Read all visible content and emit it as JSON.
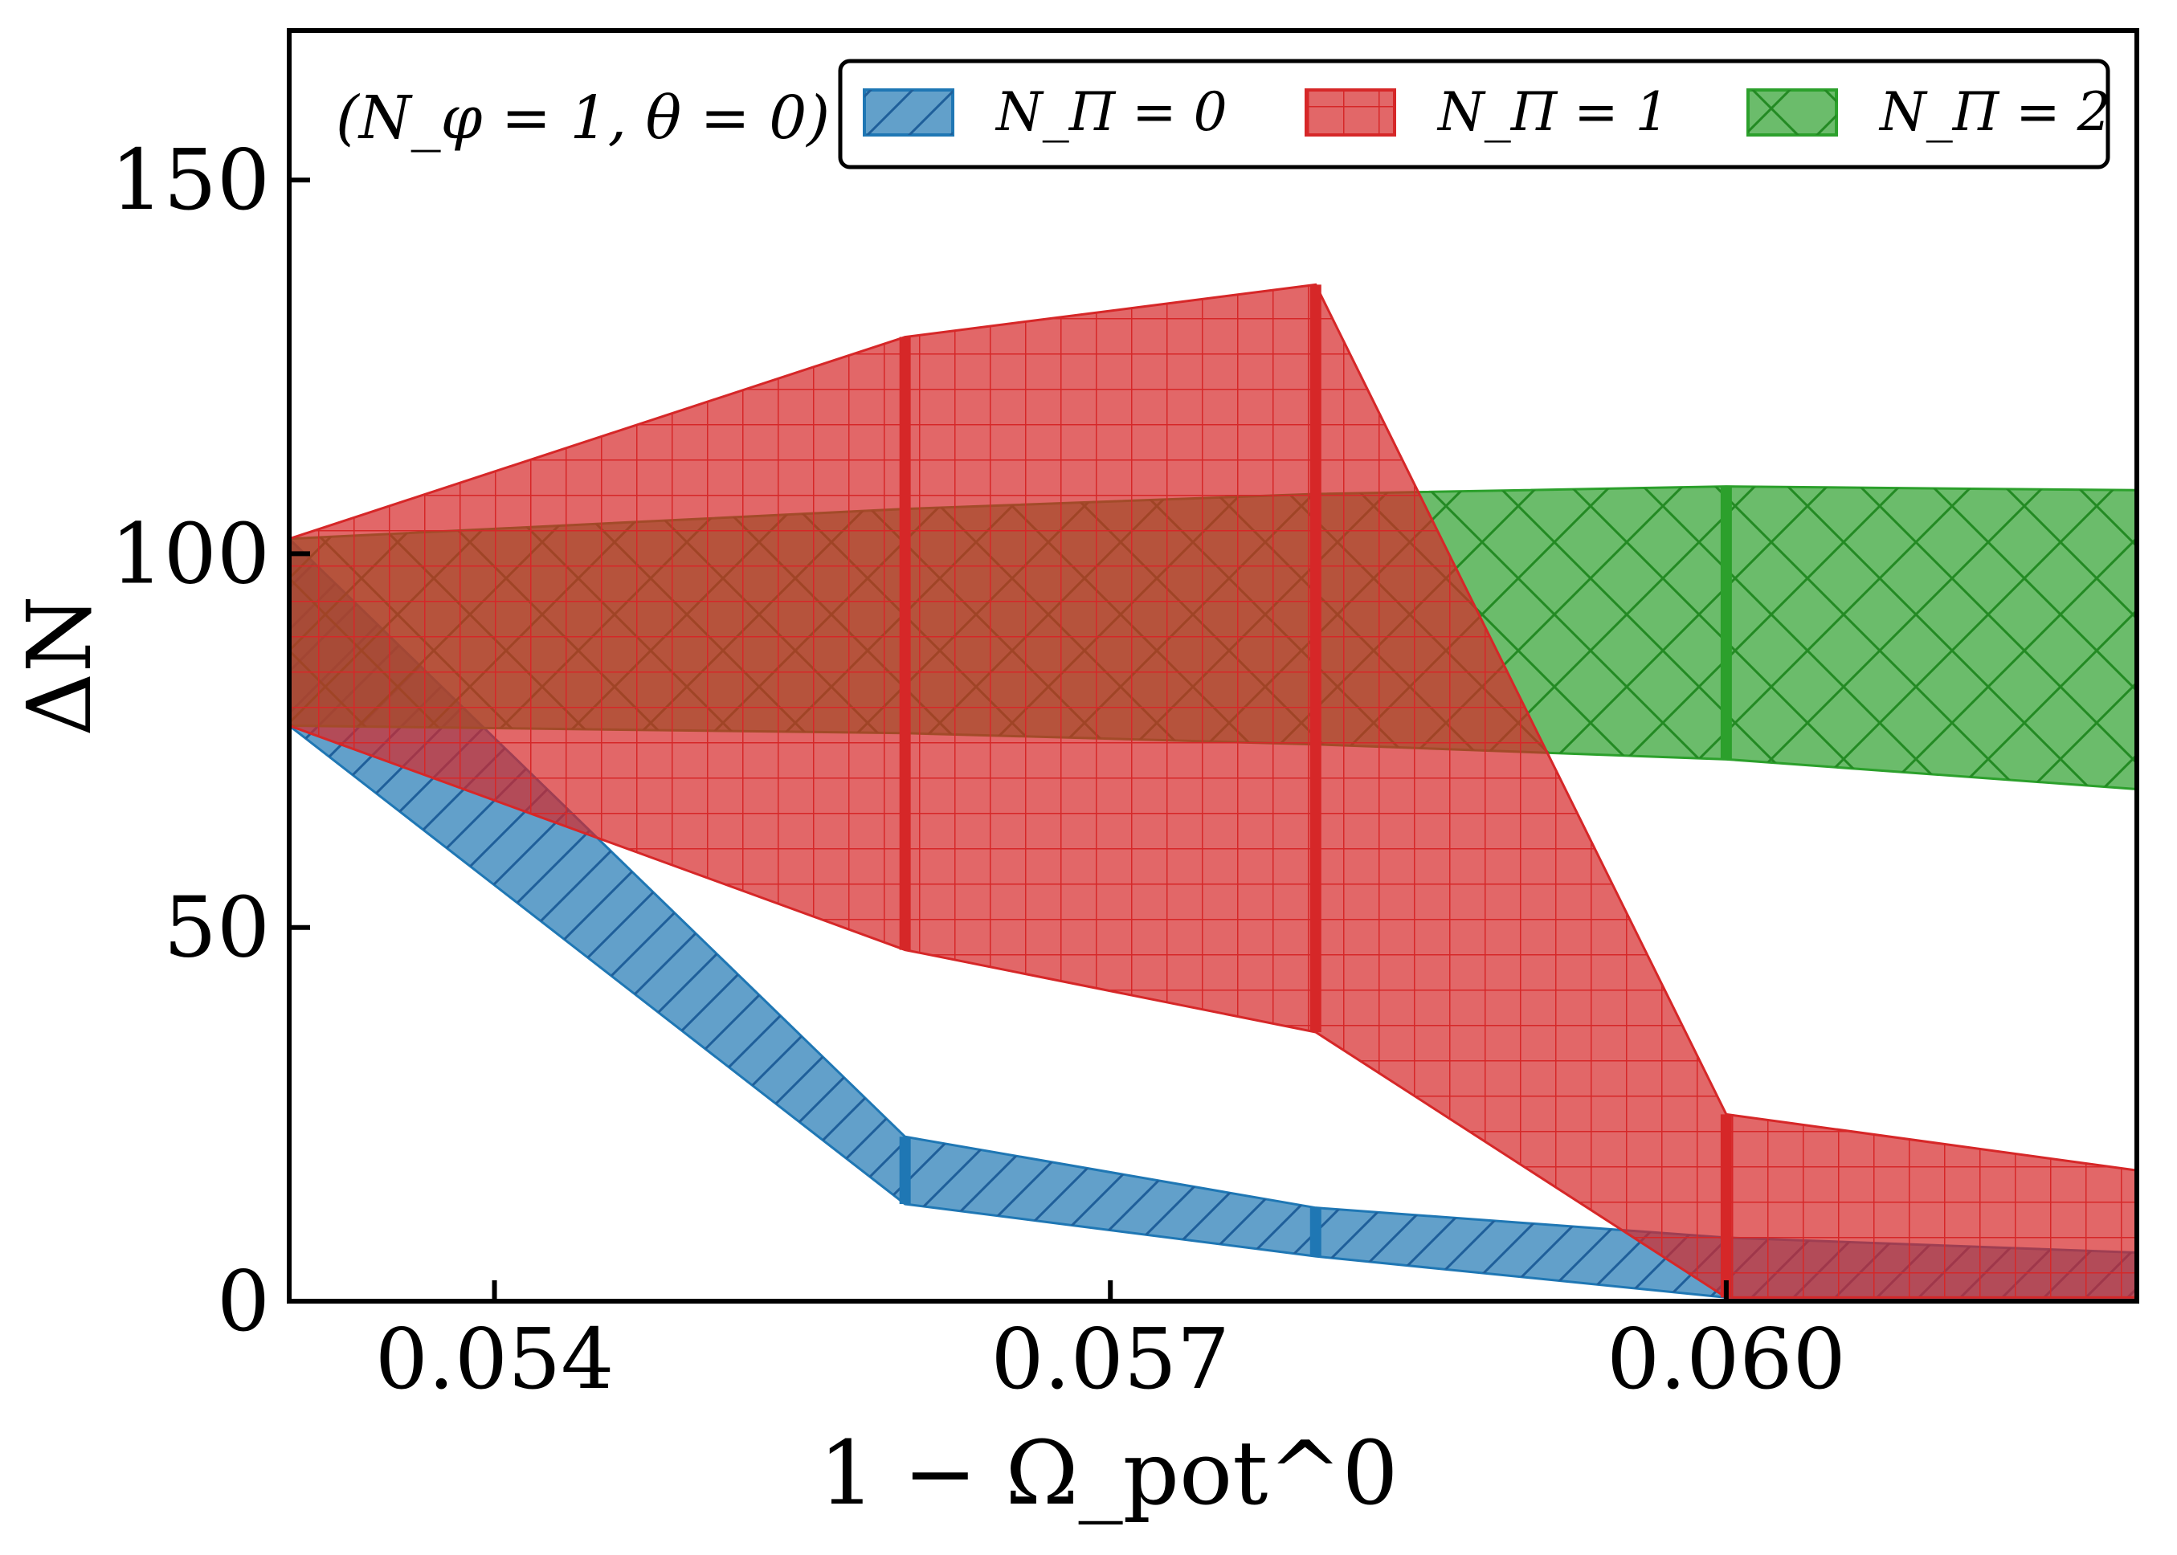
{
  "chart_data": {
    "type": "area",
    "title": "",
    "annotation": "(N_φ = 1, θ = 0)",
    "xlabel": "1 − Ω_pot^0",
    "ylabel": "ΔN",
    "xlim": [
      0.053,
      0.062
    ],
    "ylim": [
      0,
      170
    ],
    "x_ticks": [
      0.054,
      0.057,
      0.06
    ],
    "x_tick_labels": [
      "0.054",
      "0.057",
      "0.060"
    ],
    "y_ticks": [
      0,
      50,
      100,
      150
    ],
    "y_tick_labels": [
      "0",
      "50",
      "100",
      "150"
    ],
    "legend_position": "top-right",
    "series": [
      {
        "name": "N_Π = 0",
        "color": "#1f77b4",
        "hatch": "diagonal",
        "x": [
          0.053,
          0.056,
          0.058,
          0.06,
          0.062
        ],
        "upper": [
          102,
          22,
          12.5,
          8.5,
          6.5
        ],
        "lower": [
          77,
          13,
          6,
          0.5,
          0.5
        ],
        "error_bars_at": [
          0.056,
          0.058,
          0.06
        ]
      },
      {
        "name": "N_Π = 1",
        "color": "#d62728",
        "hatch": "grid",
        "x": [
          0.053,
          0.056,
          0.058,
          0.06,
          0.062
        ],
        "upper": [
          102,
          129,
          136,
          25,
          17.5
        ],
        "lower": [
          77,
          47,
          36,
          0.5,
          0.5
        ],
        "error_bars_at": [
          0.056,
          0.058,
          0.06
        ]
      },
      {
        "name": "N_Π = 2",
        "color": "#2ca02c",
        "hatch": "crosshatch",
        "x": [
          0.053,
          0.056,
          0.058,
          0.06,
          0.062
        ],
        "upper": [
          102,
          106,
          108,
          109,
          108.5
        ],
        "lower": [
          77,
          76,
          74.5,
          72.5,
          68.5
        ],
        "error_bars_at": [
          0.06
        ]
      }
    ]
  },
  "legend": {
    "labels": [
      "N_Π = 0",
      "N_Π = 1",
      "N_Π = 2"
    ]
  }
}
